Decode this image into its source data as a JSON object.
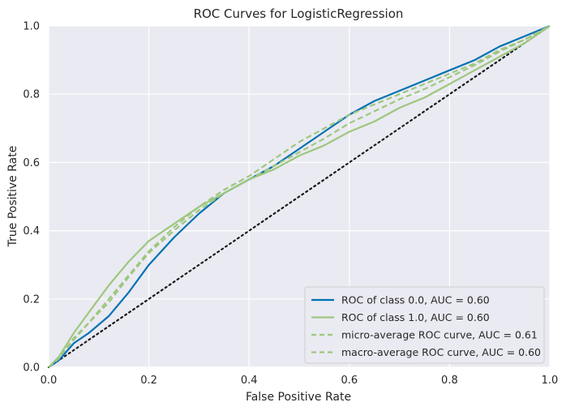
{
  "chart_data": {
    "type": "line",
    "title": "ROC Curves for LogisticRegression",
    "xlabel": "False Positive Rate",
    "ylabel": "True Positive Rate",
    "xlim": [
      0,
      1
    ],
    "ylim": [
      0,
      1
    ],
    "xticks": [
      "0.0",
      "0.2",
      "0.4",
      "0.6",
      "0.8",
      "1.0"
    ],
    "yticks": [
      "0.0",
      "0.2",
      "0.4",
      "0.6",
      "0.8",
      "1.0"
    ],
    "grid": true,
    "legend_position": "lower-right",
    "series": [
      {
        "name": "ROC of class 0.0, AUC = 0.60",
        "color": "#0072B2",
        "dash": "solid",
        "points": [
          [
            0,
            0
          ],
          [
            0.02,
            0.02
          ],
          [
            0.05,
            0.07
          ],
          [
            0.08,
            0.1
          ],
          [
            0.12,
            0.15
          ],
          [
            0.16,
            0.22
          ],
          [
            0.2,
            0.3
          ],
          [
            0.25,
            0.38
          ],
          [
            0.3,
            0.45
          ],
          [
            0.35,
            0.51
          ],
          [
            0.4,
            0.55
          ],
          [
            0.45,
            0.59
          ],
          [
            0.5,
            0.64
          ],
          [
            0.55,
            0.69
          ],
          [
            0.6,
            0.74
          ],
          [
            0.65,
            0.78
          ],
          [
            0.7,
            0.81
          ],
          [
            0.75,
            0.84
          ],
          [
            0.8,
            0.87
          ],
          [
            0.85,
            0.9
          ],
          [
            0.9,
            0.94
          ],
          [
            0.95,
            0.97
          ],
          [
            1,
            1
          ]
        ]
      },
      {
        "name": "ROC of class 1.0, AUC = 0.60",
        "color": "#9DC77E",
        "dash": "solid",
        "points": [
          [
            0,
            0
          ],
          [
            0.02,
            0.03
          ],
          [
            0.05,
            0.1
          ],
          [
            0.08,
            0.16
          ],
          [
            0.12,
            0.24
          ],
          [
            0.16,
            0.31
          ],
          [
            0.2,
            0.37
          ],
          [
            0.25,
            0.42
          ],
          [
            0.3,
            0.47
          ],
          [
            0.35,
            0.51
          ],
          [
            0.4,
            0.55
          ],
          [
            0.45,
            0.58
          ],
          [
            0.5,
            0.62
          ],
          [
            0.55,
            0.65
          ],
          [
            0.6,
            0.69
          ],
          [
            0.65,
            0.72
          ],
          [
            0.7,
            0.76
          ],
          [
            0.75,
            0.79
          ],
          [
            0.8,
            0.83
          ],
          [
            0.85,
            0.87
          ],
          [
            0.9,
            0.91
          ],
          [
            0.95,
            0.95
          ],
          [
            1,
            1
          ]
        ]
      },
      {
        "name": "micro-average ROC curve, AUC = 0.61",
        "color": "#9DC77E",
        "dash": "dashed",
        "points": [
          [
            0,
            0
          ],
          [
            0.02,
            0.03
          ],
          [
            0.05,
            0.08
          ],
          [
            0.08,
            0.13
          ],
          [
            0.12,
            0.2
          ],
          [
            0.16,
            0.27
          ],
          [
            0.2,
            0.34
          ],
          [
            0.25,
            0.41
          ],
          [
            0.3,
            0.47
          ],
          [
            0.35,
            0.52
          ],
          [
            0.4,
            0.56
          ],
          [
            0.45,
            0.61
          ],
          [
            0.5,
            0.66
          ],
          [
            0.55,
            0.7
          ],
          [
            0.6,
            0.74
          ],
          [
            0.65,
            0.77
          ],
          [
            0.7,
            0.8
          ],
          [
            0.75,
            0.83
          ],
          [
            0.8,
            0.86
          ],
          [
            0.85,
            0.89
          ],
          [
            0.9,
            0.93
          ],
          [
            0.95,
            0.96
          ],
          [
            1,
            1
          ]
        ]
      },
      {
        "name": "macro-average ROC curve, AUC = 0.60",
        "color": "#9DC77E",
        "dash": "dashed",
        "points": [
          [
            0,
            0
          ],
          [
            0.02,
            0.025
          ],
          [
            0.05,
            0.085
          ],
          [
            0.08,
            0.13
          ],
          [
            0.12,
            0.19
          ],
          [
            0.16,
            0.265
          ],
          [
            0.2,
            0.335
          ],
          [
            0.25,
            0.4
          ],
          [
            0.3,
            0.46
          ],
          [
            0.35,
            0.51
          ],
          [
            0.4,
            0.55
          ],
          [
            0.45,
            0.59
          ],
          [
            0.5,
            0.63
          ],
          [
            0.55,
            0.67
          ],
          [
            0.6,
            0.715
          ],
          [
            0.65,
            0.75
          ],
          [
            0.7,
            0.785
          ],
          [
            0.75,
            0.815
          ],
          [
            0.8,
            0.85
          ],
          [
            0.85,
            0.885
          ],
          [
            0.9,
            0.925
          ],
          [
            0.95,
            0.96
          ],
          [
            1,
            1
          ]
        ]
      }
    ],
    "reference_line": {
      "color": "#1a1a1a",
      "dash": "dotted",
      "points": [
        [
          0,
          0
        ],
        [
          1,
          1
        ]
      ]
    }
  }
}
